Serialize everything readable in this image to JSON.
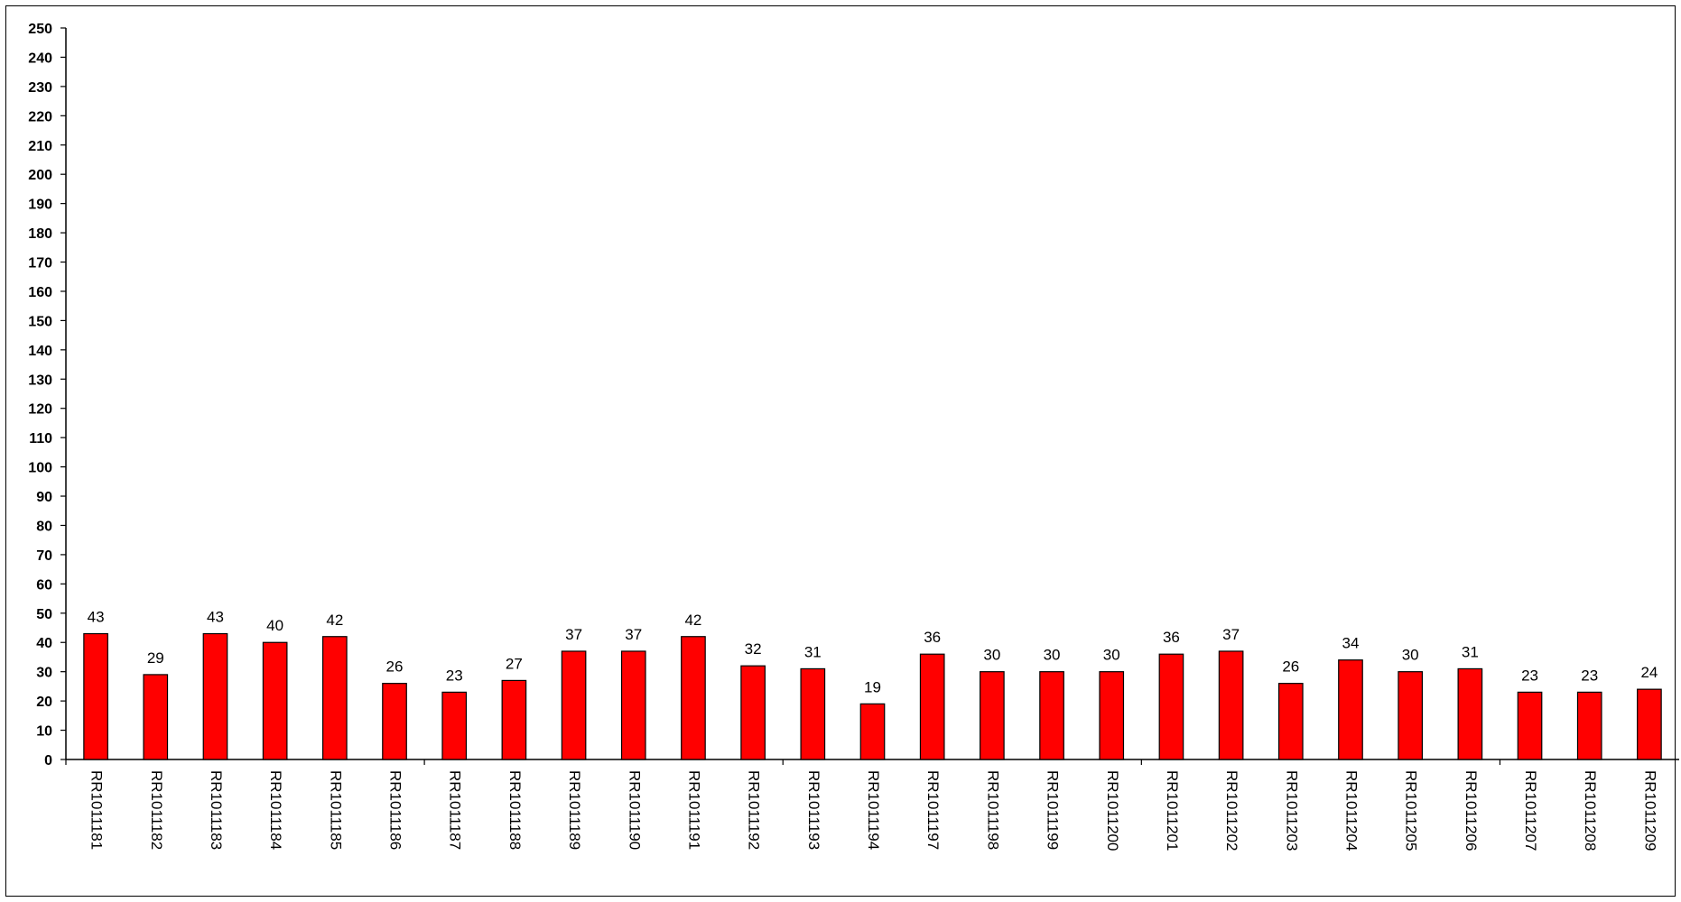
{
  "chart_data": {
    "type": "bar",
    "categories": [
      "RR1011181",
      "RR1011182",
      "RR1011183",
      "RR1011184",
      "RR1011185",
      "RR1011186",
      "RR1011187",
      "RR1011188",
      "RR1011189",
      "RR1011190",
      "RR1011191",
      "RR1011192",
      "RR1011193",
      "RR1011194",
      "RR1011197",
      "RR1011198",
      "RR1011199",
      "RR1011200",
      "RR1011201",
      "RR1011202",
      "RR1011203",
      "RR1011204",
      "RR1011205",
      "RR1011206",
      "RR1011207",
      "RR1011208",
      "RR1011209"
    ],
    "values": [
      43,
      29,
      43,
      40,
      42,
      26,
      23,
      27,
      37,
      37,
      42,
      32,
      31,
      19,
      36,
      30,
      30,
      30,
      36,
      37,
      26,
      34,
      30,
      31,
      23,
      23,
      24
    ],
    "data_labels": [
      "43",
      "29",
      "43",
      "40",
      "42",
      "26",
      "23",
      "27",
      "37",
      "37",
      "42",
      "32",
      "31",
      "19",
      "36",
      "30",
      "30",
      "30",
      "36",
      "37",
      "26",
      "34",
      "30",
      "31",
      "23",
      "23",
      "24"
    ],
    "yticks": [
      "0",
      "10",
      "20",
      "30",
      "40",
      "50",
      "60",
      "70",
      "80",
      "90",
      "100",
      "110",
      "120",
      "130",
      "140",
      "150",
      "160",
      "170",
      "180",
      "190",
      "200",
      "210",
      "220",
      "230",
      "240",
      "250"
    ],
    "ylim": [
      0,
      250
    ],
    "title": "",
    "xlabel": "",
    "ylabel": "",
    "grid": false,
    "legend": "none",
    "bar_color": "#ff0000",
    "bar_edge_color": "#000000"
  }
}
